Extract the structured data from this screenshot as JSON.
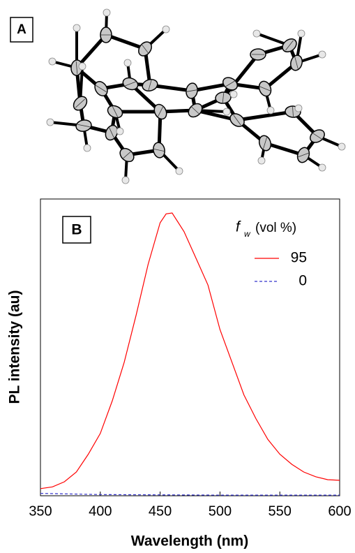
{
  "panel_a": {
    "label": "A"
  },
  "chart_data": {
    "type": "line",
    "panel_label": "B",
    "x_label": "Wavelength (nm)",
    "y_label": "PL intensity (au)",
    "legend_title": {
      "symbol": "f",
      "subscript": "w",
      "text": "(vol %)"
    },
    "xlim": [
      350,
      600
    ],
    "xticks": [
      350,
      400,
      450,
      500,
      550,
      600
    ],
    "ylim": [
      0,
      100
    ],
    "series": [
      {
        "name": "95",
        "color": "#ff0000",
        "style": "solid",
        "x": [
          350,
          360,
          370,
          380,
          390,
          400,
          410,
          420,
          430,
          440,
          450,
          455,
          460,
          470,
          480,
          490,
          500,
          510,
          520,
          530,
          540,
          550,
          560,
          570,
          580,
          590,
          600
        ],
        "values": [
          2.4,
          3,
          4.7,
          8,
          14,
          21,
          32,
          45,
          61,
          78,
          92,
          95,
          95.3,
          89,
          80,
          71,
          56,
          45,
          34,
          26,
          19,
          14,
          10.6,
          8,
          6.4,
          5.4,
          5.2
        ]
      },
      {
        "name": "0",
        "color": "#3333cc",
        "style": "dashed",
        "x": [
          350,
          400,
          450,
          500,
          550,
          600
        ],
        "values": [
          0.8,
          0.4,
          0.3,
          0.2,
          0.2,
          0.2
        ]
      }
    ]
  }
}
